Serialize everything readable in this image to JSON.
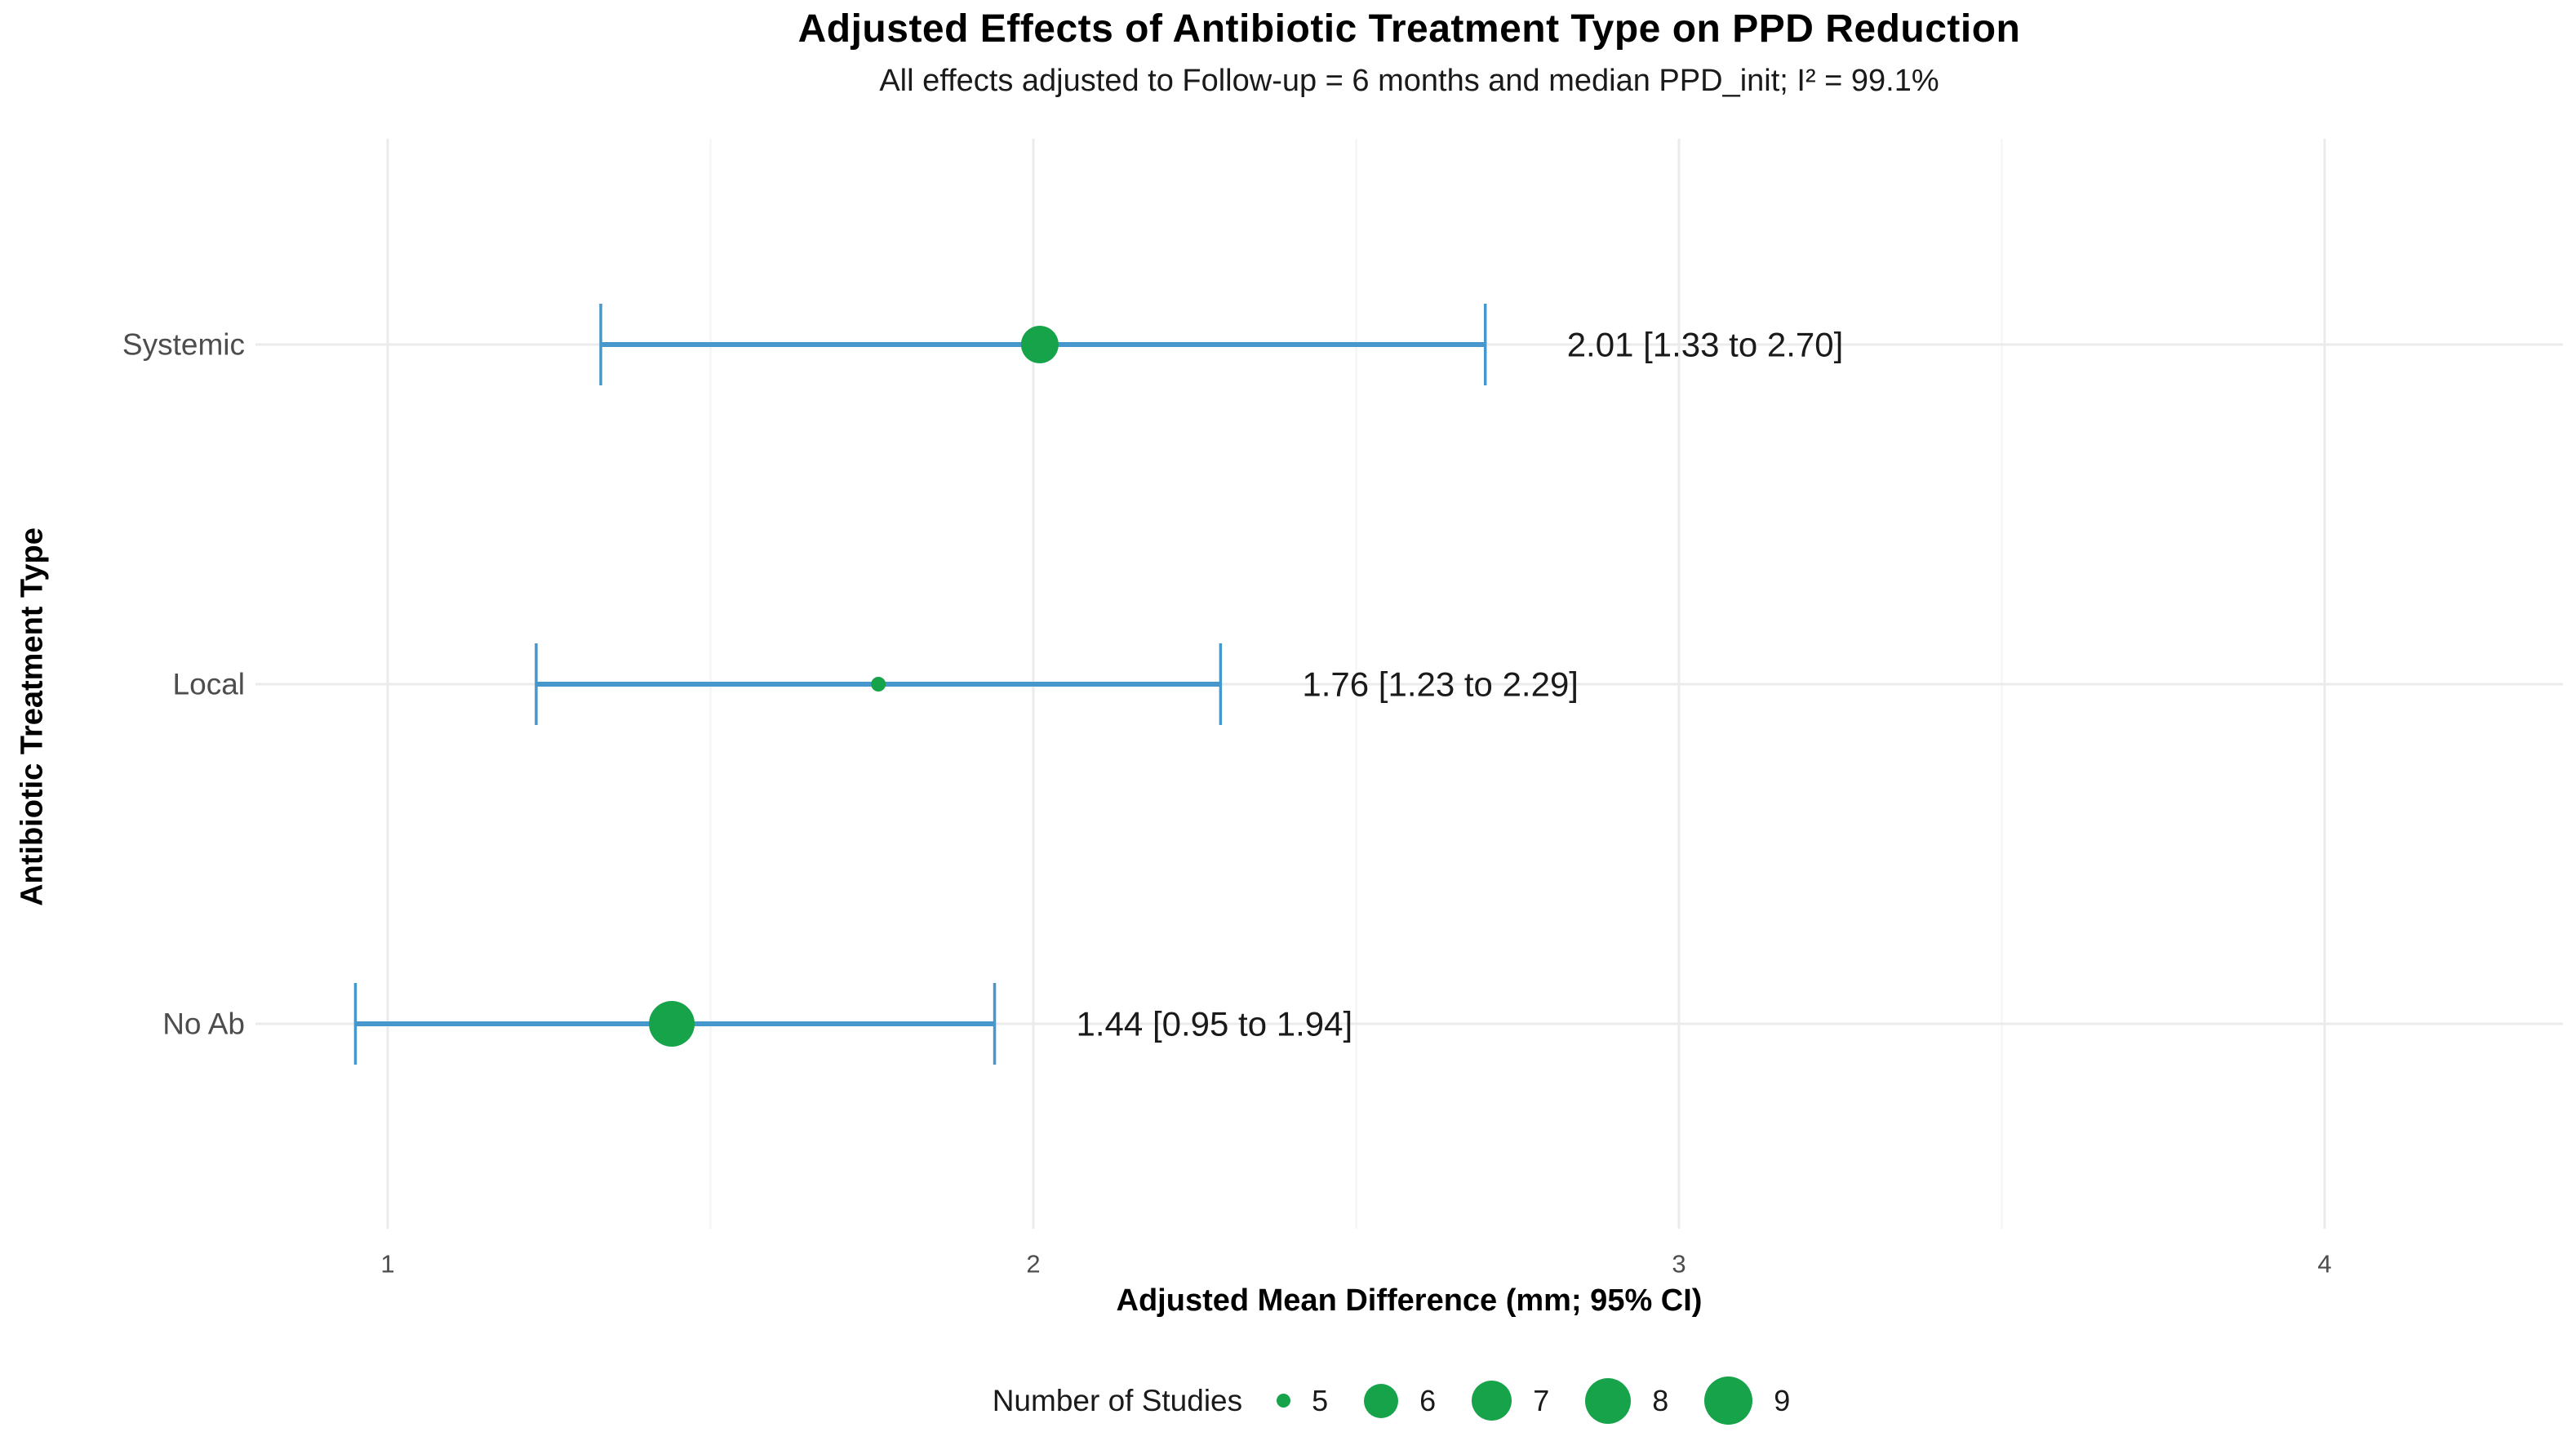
{
  "chart_data": {
    "type": "scatter",
    "subtype": "forest-plot-dot-ci",
    "title": "Adjusted Effects of Antibiotic Treatment Type on PPD Reduction",
    "subtitle": "All effects adjusted to Follow-up = 6 months and median PPD_init; I² = 99.1%",
    "xlabel": "Adjusted Mean Difference (mm; 95% CI)",
    "ylabel": "Antibiotic Treatment Type",
    "x_ticks": [
      1,
      2,
      3,
      4
    ],
    "x_minor_gridlines": [
      1.5,
      2.5,
      3.5
    ],
    "xlim": [
      0.8,
      4.37
    ],
    "grid": true,
    "legend_position": "bottom",
    "rows": [
      {
        "label": "Systemic",
        "estimate": 2.01,
        "ci_low": 1.33,
        "ci_high": 2.7,
        "annotation": "2.01 [1.33 to 2.70]",
        "n_studies": 7,
        "dot_radius_px": 23
      },
      {
        "label": "Local",
        "estimate": 1.76,
        "ci_low": 1.23,
        "ci_high": 2.29,
        "annotation": "1.76 [1.23 to 2.29]",
        "n_studies": 5,
        "dot_radius_px": 9
      },
      {
        "label": "No Ab",
        "estimate": 1.44,
        "ci_low": 0.95,
        "ci_high": 1.94,
        "annotation": "1.44 [0.95 to 1.94]",
        "n_studies": 8,
        "dot_radius_px": 28
      }
    ],
    "legend": {
      "title": "Number of Studies",
      "items": [
        {
          "label": "5",
          "radius_px": 8.5
        },
        {
          "label": "6",
          "radius_px": 21
        },
        {
          "label": "7",
          "radius_px": 24.5
        },
        {
          "label": "8",
          "radius_px": 28
        },
        {
          "label": "9",
          "radius_px": 29.5
        }
      ]
    },
    "colors": {
      "point_green": "#17a34a",
      "ci_blue": "#4697cc",
      "grid_major": "#ebebeb",
      "grid_minor": "#f5f5f5",
      "axis_text": "#4d4d4d",
      "label_text": "#1a1a1a"
    }
  }
}
